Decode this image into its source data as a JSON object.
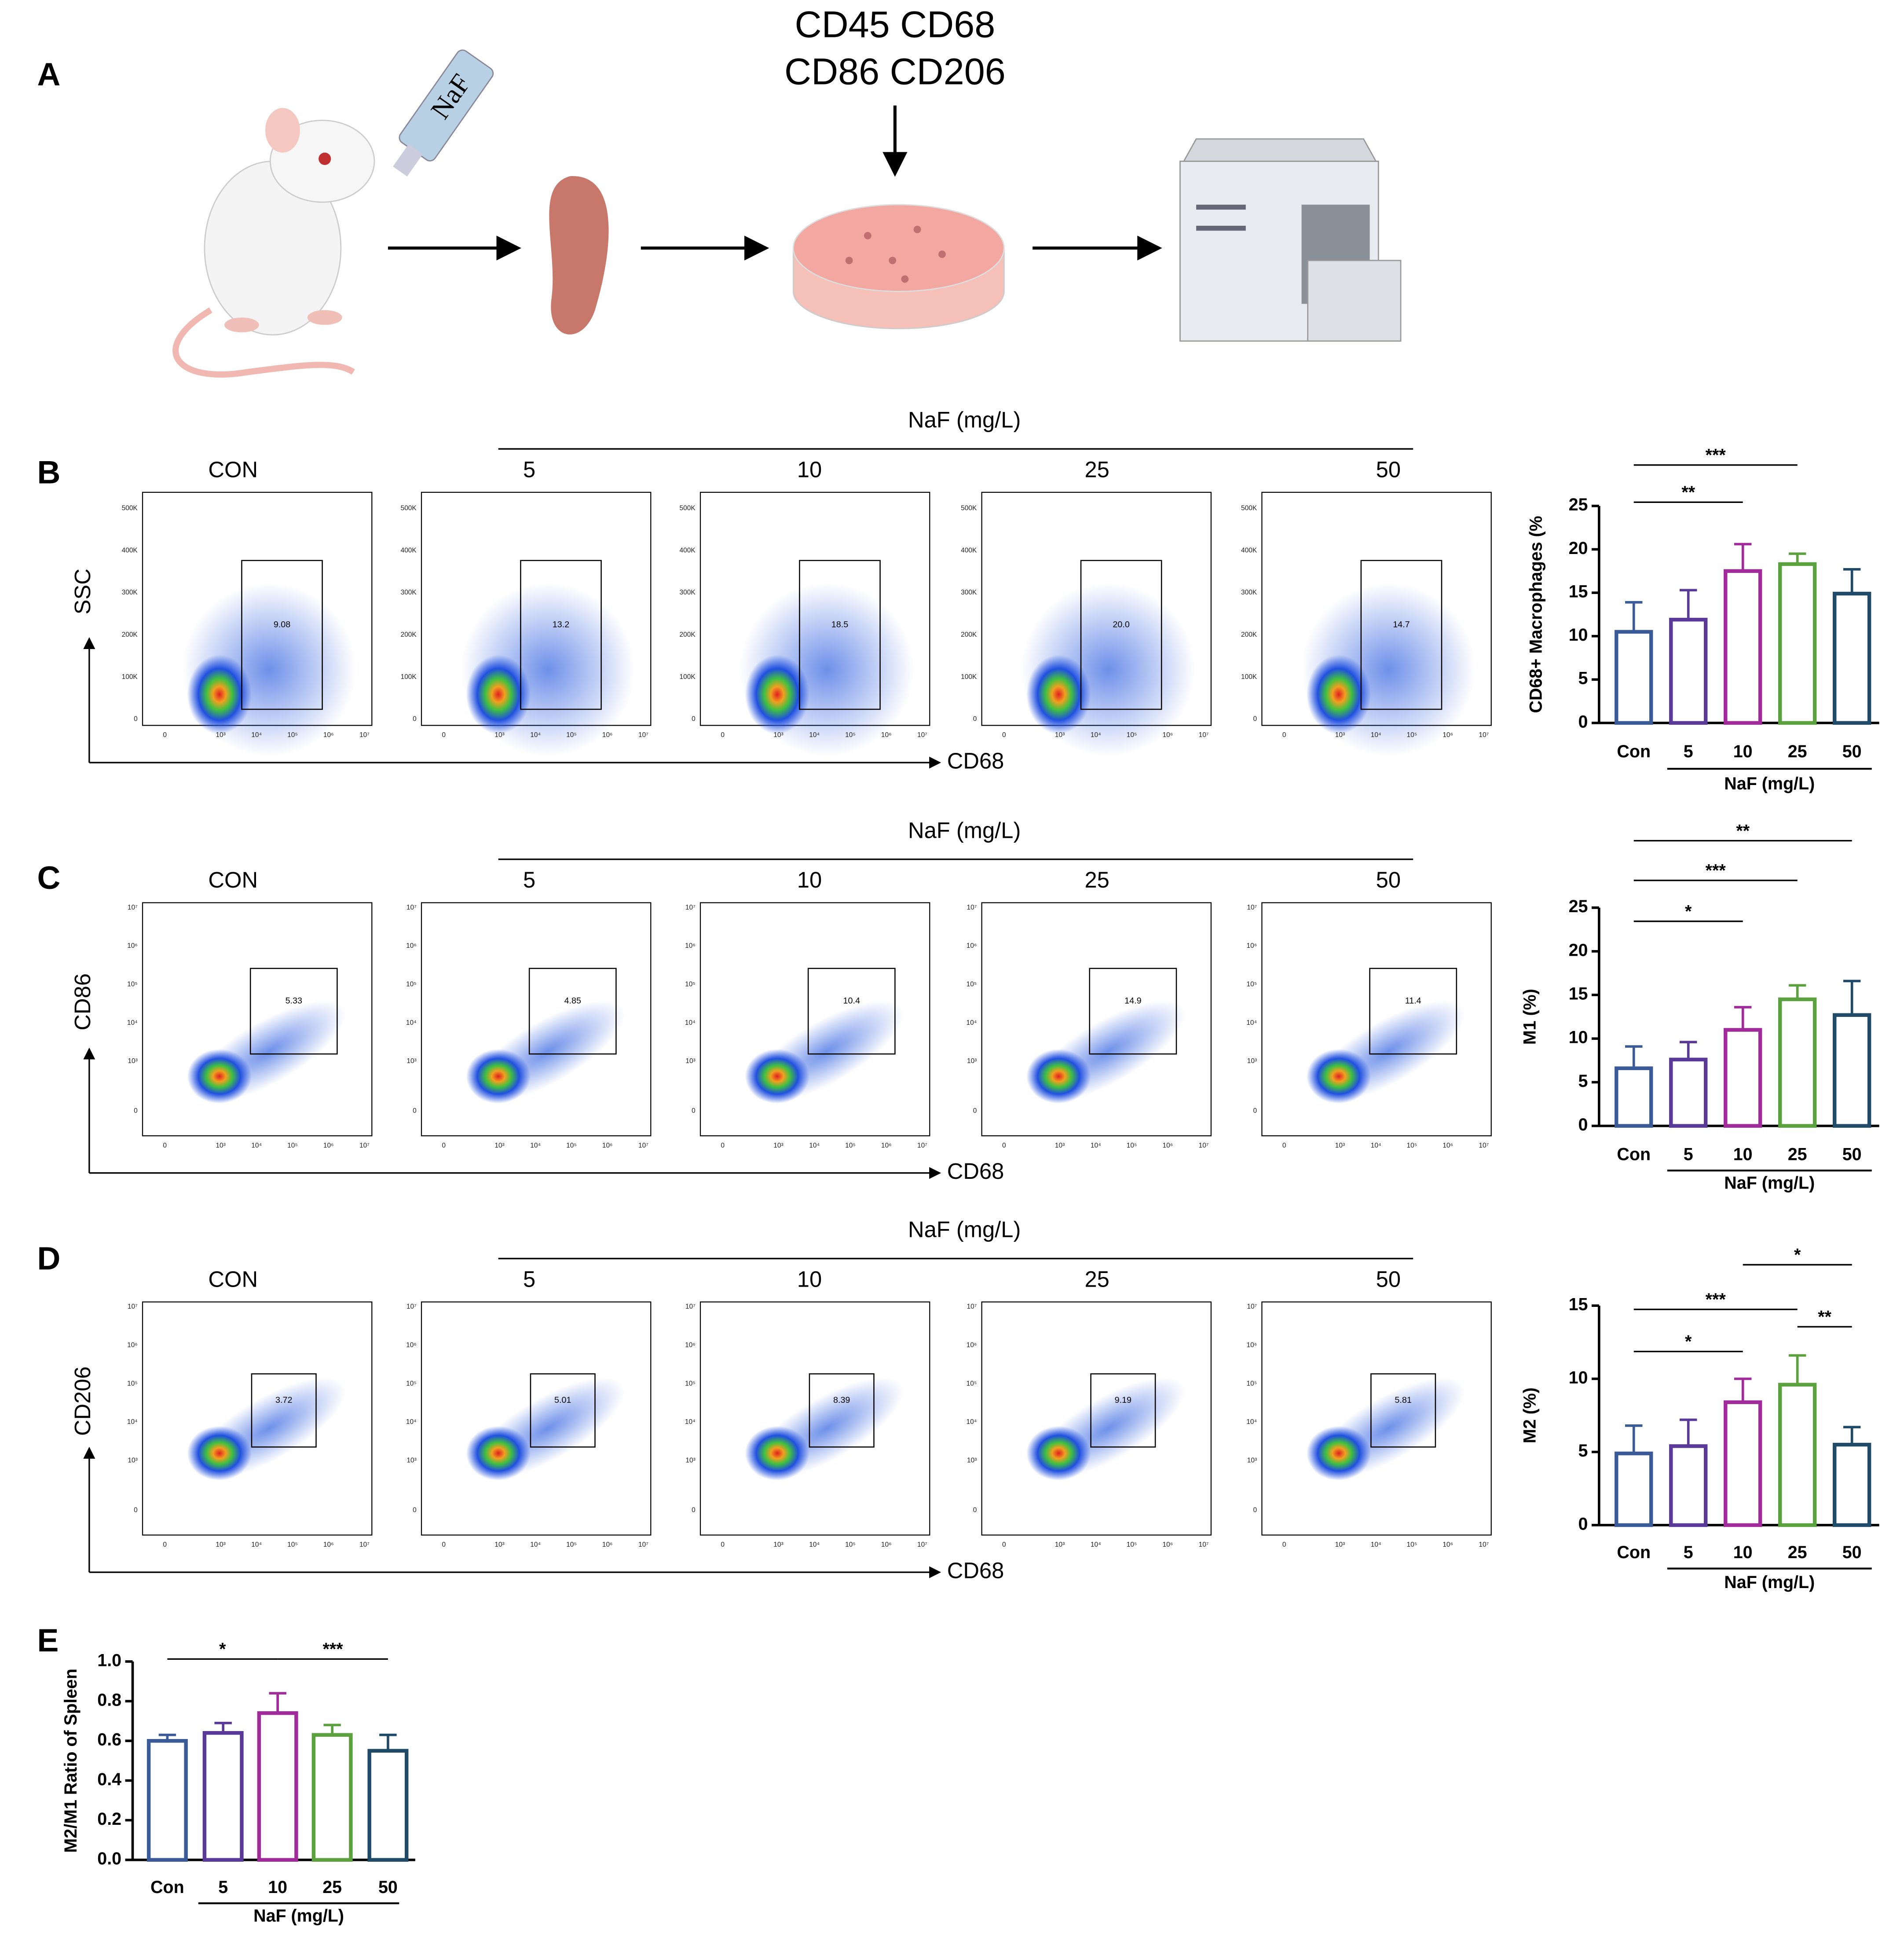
{
  "panel_labels": [
    "A",
    "B",
    "C",
    "D",
    "E"
  ],
  "diagram": {
    "markers": [
      "CD45 CD68",
      "CD86 CD206"
    ],
    "syringe_label": "NaF"
  },
  "flow_axis": {
    "ssc_ticks": [
      "0",
      "100K",
      "200K",
      "300K",
      "400K",
      "500K"
    ],
    "log_ticks": [
      "0",
      "10³",
      "10⁴",
      "10⁵",
      "10⁶",
      "10⁷"
    ]
  },
  "flow": [
    {
      "y_axis": "SSC",
      "x_axis": "CD68",
      "group_label": "NaF (mg/L)",
      "columns": [
        "CON",
        "5",
        "10",
        "25",
        "50"
      ],
      "gates": [
        "9.08",
        "13.2",
        "18.5",
        "20.0",
        "14.7"
      ],
      "y_scale": "linear"
    },
    {
      "y_axis": "CD86",
      "x_axis": "CD68",
      "group_label": "NaF (mg/L)",
      "columns": [
        "CON",
        "5",
        "10",
        "25",
        "50"
      ],
      "gates": [
        "5.33",
        "4.85",
        "10.4",
        "14.9",
        "11.4"
      ],
      "y_scale": "log"
    },
    {
      "y_axis": "CD206",
      "x_axis": "CD68",
      "group_label": "NaF (mg/L)",
      "columns": [
        "CON",
        "5",
        "10",
        "25",
        "50"
      ],
      "gates": [
        "3.72",
        "5.01",
        "8.39",
        "9.19",
        "5.81"
      ],
      "y_scale": "log"
    }
  ],
  "chart_data": [
    {
      "type": "bar",
      "y_label": "CD68+ Macrophages  (%",
      "x_label": "NaF (mg/L)",
      "categories": [
        "Con",
        "5",
        "10",
        "25",
        "50"
      ],
      "values": [
        10.5,
        11.9,
        17.5,
        18.3,
        14.9
      ],
      "errors": [
        3.4,
        3.4,
        3.1,
        1.2,
        2.8
      ],
      "colors": [
        "#3b5b98",
        "#5a3a98",
        "#a12b9b",
        "#5ba23f",
        "#1f4a68"
      ],
      "ylim": [
        0,
        25
      ],
      "yticks": [
        0,
        5,
        10,
        15,
        20,
        25
      ],
      "annotations": [
        {
          "label": "**",
          "between": [
            "Con",
            "10"
          ]
        },
        {
          "label": "***",
          "between": [
            "Con",
            "25"
          ]
        }
      ]
    },
    {
      "type": "bar",
      "y_label": "M1  (%)",
      "x_label": "NaF (mg/L)",
      "categories": [
        "Con",
        "5",
        "10",
        "25",
        "50"
      ],
      "values": [
        6.6,
        7.6,
        11.0,
        14.5,
        12.7
      ],
      "errors": [
        2.5,
        2.0,
        2.6,
        1.6,
        3.9
      ],
      "colors": [
        "#3b5b98",
        "#5a3a98",
        "#a12b9b",
        "#5ba23f",
        "#1f4a68"
      ],
      "ylim": [
        0,
        25
      ],
      "yticks": [
        0,
        5,
        10,
        15,
        20,
        25
      ],
      "annotations": [
        {
          "label": "*",
          "between": [
            "Con",
            "10"
          ]
        },
        {
          "label": "***",
          "between": [
            "Con",
            "25"
          ]
        },
        {
          "label": "**",
          "between": [
            "Con",
            "50"
          ]
        }
      ]
    },
    {
      "type": "bar",
      "y_label": "M2   (%)",
      "x_label": "NaF (mg/L)",
      "categories": [
        "Con",
        "5",
        "10",
        "25",
        "50"
      ],
      "values": [
        4.9,
        5.4,
        8.4,
        9.6,
        5.5
      ],
      "errors": [
        1.9,
        1.8,
        1.6,
        2.0,
        1.2
      ],
      "colors": [
        "#3b5b98",
        "#5a3a98",
        "#a12b9b",
        "#5ba23f",
        "#1f4a68"
      ],
      "ylim": [
        0,
        15
      ],
      "yticks": [
        0,
        5,
        10,
        15
      ],
      "annotations": [
        {
          "label": "*",
          "between": [
            "Con",
            "10"
          ]
        },
        {
          "label": "***",
          "between": [
            "Con",
            "25"
          ]
        },
        {
          "label": "*",
          "between": [
            "10",
            "50"
          ]
        },
        {
          "label": "**",
          "between": [
            "25",
            "50"
          ]
        }
      ]
    },
    {
      "type": "bar",
      "y_label": "M2/M1 Ratio of Spleen",
      "x_label": "NaF (mg/L)",
      "categories": [
        "Con",
        "5",
        "10",
        "25",
        "50"
      ],
      "values": [
        0.6,
        0.64,
        0.74,
        0.63,
        0.55
      ],
      "errors": [
        0.03,
        0.05,
        0.1,
        0.05,
        0.08
      ],
      "colors": [
        "#3b5b98",
        "#5a3a98",
        "#a12b9b",
        "#5ba23f",
        "#1f4a68"
      ],
      "ylim": [
        0,
        1
      ],
      "yticks": [
        {
          "value": 0,
          "label": "0.0"
        },
        0.2,
        0.4,
        0.6,
        0.8,
        {
          "value": 1,
          "label": "1.0"
        }
      ],
      "annotations": [
        {
          "label": "*",
          "between": [
            "Con",
            "10"
          ]
        },
        {
          "label": "***",
          "between": [
            "10",
            "50"
          ]
        }
      ]
    }
  ]
}
